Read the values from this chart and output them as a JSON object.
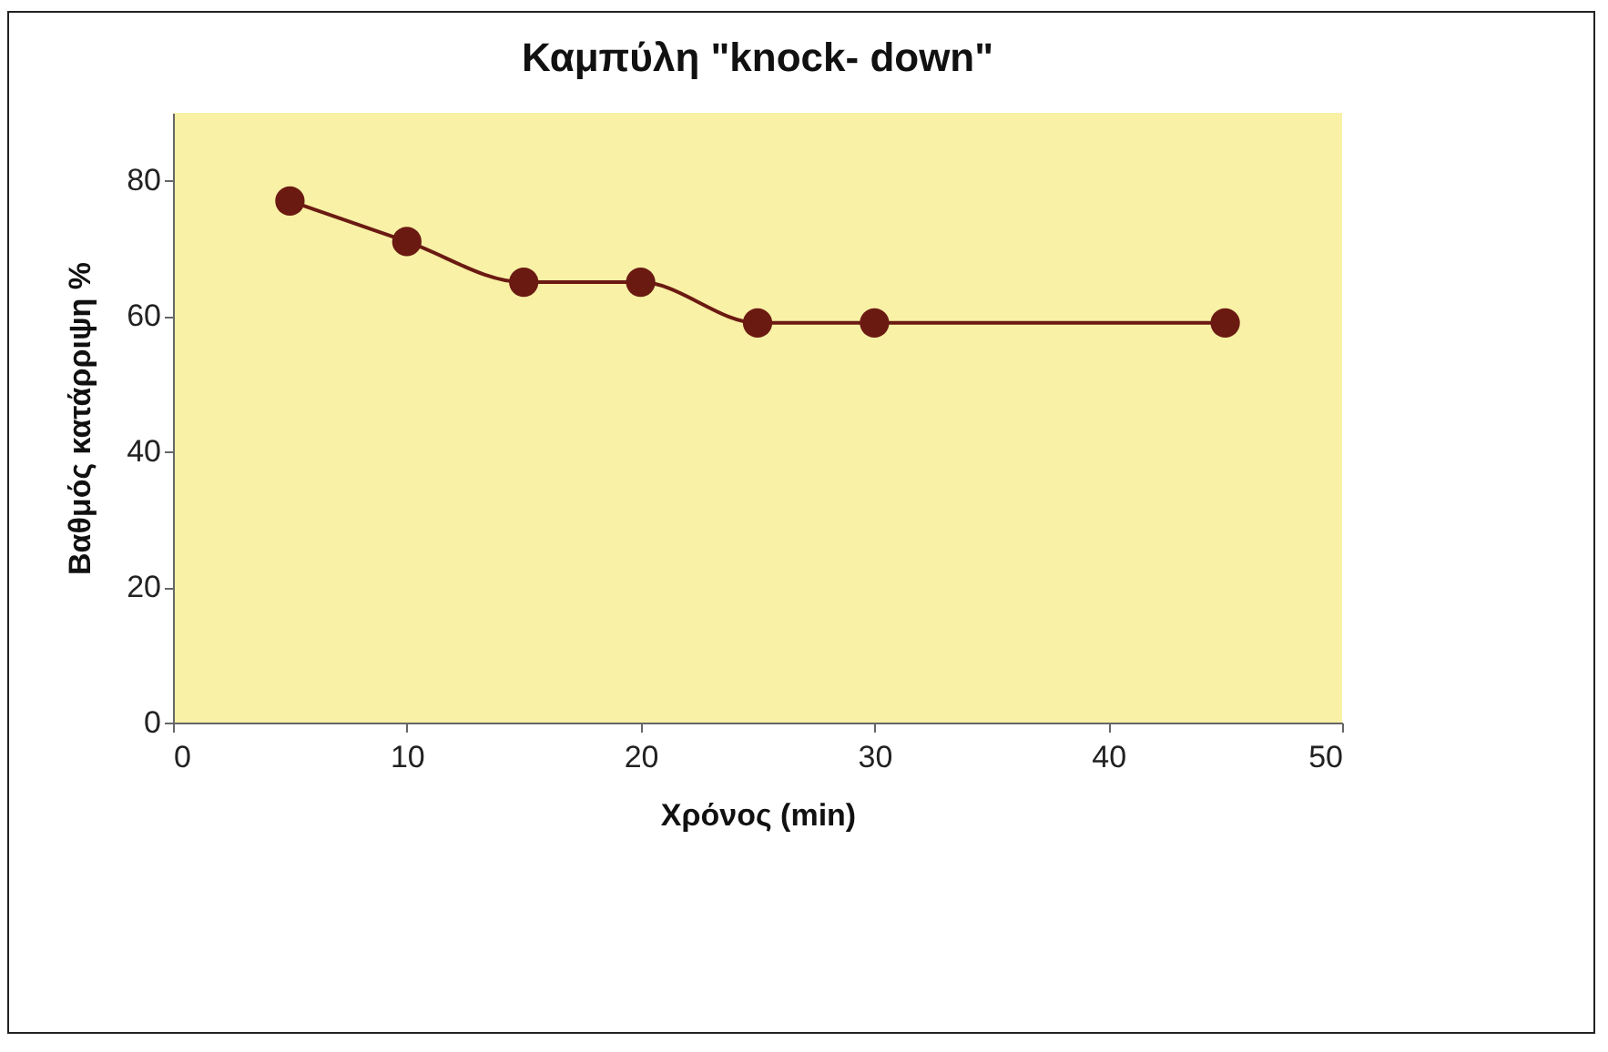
{
  "chart_data": {
    "type": "line",
    "title": "Καμπύλη \"knock- down\"",
    "xlabel": "Χρόνος (min)",
    "ylabel": "Βαθμός κατάρριψη %",
    "x": [
      5,
      10,
      15,
      20,
      25,
      30,
      45
    ],
    "series": [
      {
        "color": "#6b1a12",
        "values": [
          77,
          71,
          65,
          65,
          59,
          59,
          59
        ]
      }
    ],
    "xlim": [
      0,
      50
    ],
    "xticks": [
      0,
      10,
      20,
      30,
      40,
      50
    ],
    "ylim": [
      0,
      90
    ],
    "yticks": [
      0,
      20,
      40,
      60,
      80
    ],
    "grid": false,
    "legend": false,
    "marker": "circle",
    "line_style": "solid"
  }
}
